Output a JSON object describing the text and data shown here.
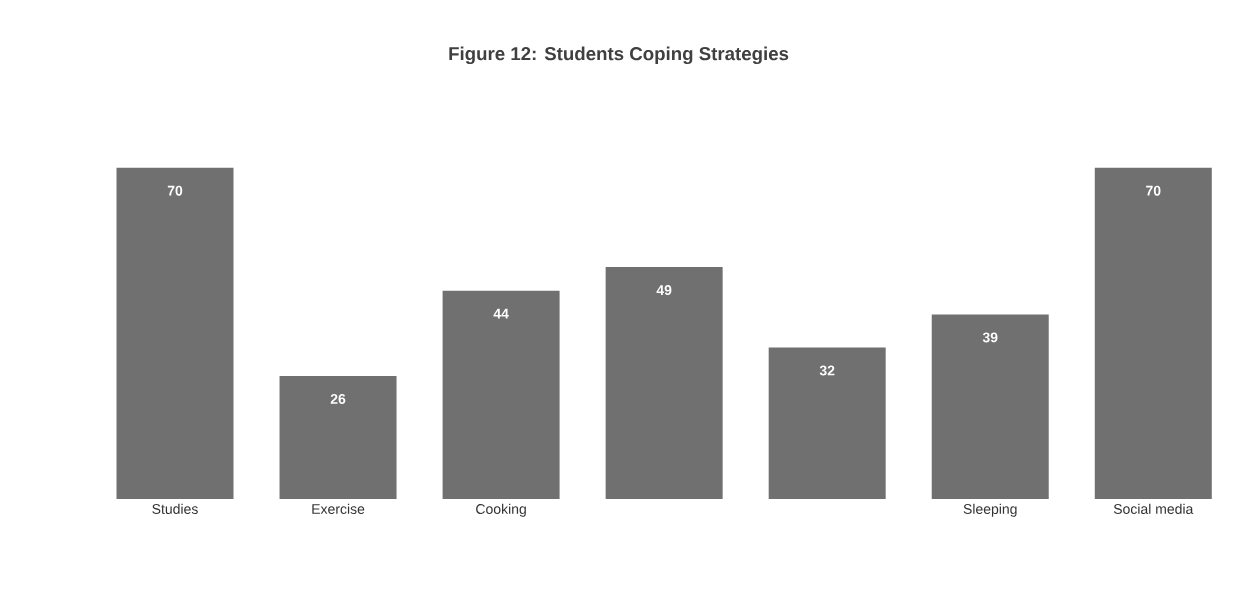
{
  "chart_data": {
    "type": "bar",
    "title": "Figure 12: Students Coping Strategies",
    "categories": [
      "Studies",
      "Exercise",
      "Cooking",
      null,
      null,
      "Sleeping",
      "Social media"
    ],
    "values": [
      70,
      26,
      44,
      49,
      32,
      39,
      70
    ],
    "color": "#707070",
    "data_labels": true
  }
}
